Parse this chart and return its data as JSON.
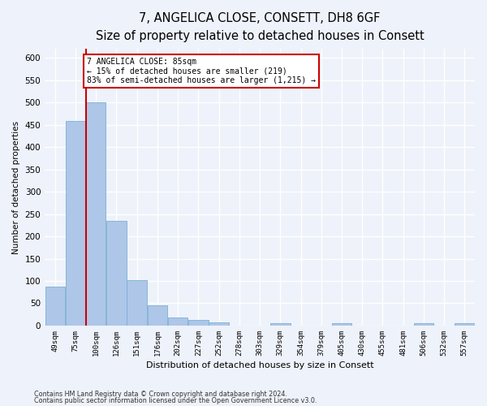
{
  "title": "7, ANGELICA CLOSE, CONSETT, DH8 6GF",
  "subtitle": "Size of property relative to detached houses in Consett",
  "xlabel": "Distribution of detached houses by size in Consett",
  "ylabel": "Number of detached properties",
  "categories": [
    "49sqm",
    "75sqm",
    "100sqm",
    "126sqm",
    "151sqm",
    "176sqm",
    "202sqm",
    "227sqm",
    "252sqm",
    "278sqm",
    "303sqm",
    "329sqm",
    "354sqm",
    "379sqm",
    "405sqm",
    "430sqm",
    "455sqm",
    "481sqm",
    "506sqm",
    "532sqm",
    "557sqm"
  ],
  "values": [
    88,
    458,
    500,
    234,
    102,
    46,
    18,
    12,
    8,
    0,
    0,
    5,
    0,
    0,
    5,
    0,
    0,
    0,
    5,
    0,
    5
  ],
  "bar_color": "#aec6e8",
  "bar_edge_color": "#7ab0d4",
  "vline_x": 1.5,
  "vline_color": "#cc0000",
  "annotation_text": "7 ANGELICA CLOSE: 85sqm\n← 15% of detached houses are smaller (219)\n83% of semi-detached houses are larger (1,215) →",
  "annotation_box_color": "#ffffff",
  "annotation_box_edgecolor": "#cc0000",
  "ylim": [
    0,
    620
  ],
  "yticks": [
    0,
    50,
    100,
    150,
    200,
    250,
    300,
    350,
    400,
    450,
    500,
    550,
    600
  ],
  "background_color": "#eef2fa",
  "grid_color": "#ffffff",
  "title_fontsize": 10.5,
  "subtitle_fontsize": 9,
  "footer_line1": "Contains HM Land Registry data © Crown copyright and database right 2024.",
  "footer_line2": "Contains public sector information licensed under the Open Government Licence v3.0."
}
